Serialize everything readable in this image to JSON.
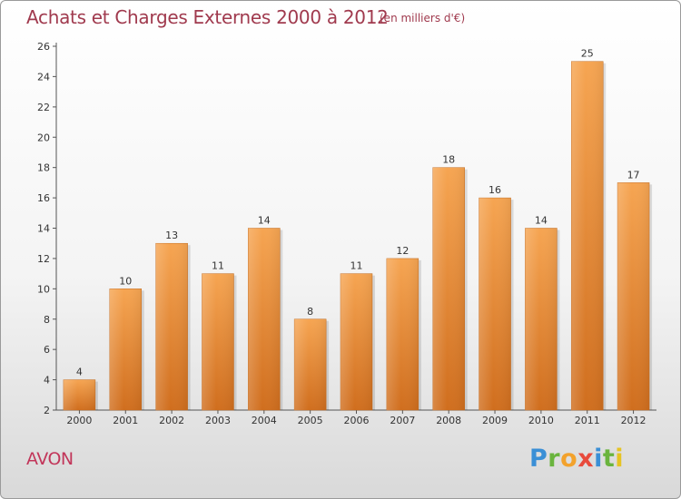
{
  "header": {
    "title": "Achats et Charges Externes 2000 à 2012",
    "unit": "(en milliers d'€)"
  },
  "footer": {
    "place": "AVON",
    "logo_text": "Proxiti"
  },
  "colors": {
    "title": "#a03a4e",
    "place": "#c2365a",
    "bar_top": "#f6a552",
    "bar_bottom": "#d06e1e"
  },
  "chart_data": {
    "type": "bar",
    "title": "Achats et Charges Externes 2000 à 2012",
    "subtitle": "(en milliers d'€)",
    "categories": [
      "2000",
      "2001",
      "2002",
      "2003",
      "2004",
      "2005",
      "2006",
      "2007",
      "2008",
      "2009",
      "2010",
      "2011",
      "2012"
    ],
    "values": [
      4,
      10,
      13,
      11,
      14,
      8,
      11,
      12,
      18,
      16,
      14,
      25,
      17
    ],
    "ylim": [
      2,
      26
    ],
    "yticks": [
      2,
      4,
      6,
      8,
      10,
      12,
      14,
      16,
      18,
      20,
      22,
      24,
      26
    ],
    "grid": false,
    "data_labels": true
  }
}
